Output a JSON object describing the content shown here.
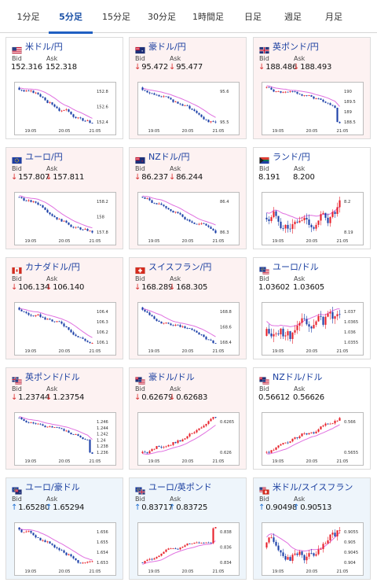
{
  "tabs": [
    {
      "label": "1分足",
      "active": false
    },
    {
      "label": "5分足",
      "active": true
    },
    {
      "label": "15分足",
      "active": false
    },
    {
      "label": "30分足",
      "active": false
    },
    {
      "label": "1時間足",
      "active": false
    },
    {
      "label": "日足",
      "active": false
    },
    {
      "label": "週足",
      "active": false
    },
    {
      "label": "月足",
      "active": false
    }
  ],
  "labels": {
    "bid": "Bid",
    "ask": "Ask"
  },
  "colors": {
    "up_candle": "#e8202a",
    "down_candle": "#1b3fa8",
    "ma_line": "#e070e0",
    "accent": "#1f5fc2",
    "down_bg": "#fdf2f2",
    "up_bg": "#eef5fb"
  },
  "x_ticks": [
    "19:05",
    "20:05",
    "21:05"
  ],
  "cards": [
    {
      "pair": "米ドル/円",
      "flag": "us-flag",
      "direction": "none",
      "bid": "152.316",
      "ask": "152.318",
      "y_ticks": [
        "152.8",
        "152.6",
        "152.4"
      ],
      "chart_data": {
        "type": "candlestick",
        "trend": "down",
        "y_ticks": [
          152.8,
          152.6,
          152.4
        ],
        "x_ticks": [
          "19:05",
          "20:05",
          "21:05"
        ]
      }
    },
    {
      "pair": "豪ドル/円",
      "flag": "au-flag",
      "direction": "down",
      "bid": "95.472",
      "ask": "95.477",
      "y_ticks": [
        "95.6",
        "95.5"
      ],
      "chart_data": {
        "type": "candlestick",
        "trend": "down",
        "y_ticks": [
          95.6,
          95.5
        ],
        "x_ticks": [
          "19:05",
          "20:05",
          "21:05"
        ]
      }
    },
    {
      "pair": "英ポンド/円",
      "flag": "gb-flag",
      "direction": "down",
      "bid": "188.486",
      "ask": "188.493",
      "y_ticks": [
        "190",
        "189.5",
        "189",
        "188.5"
      ],
      "chart_data": {
        "type": "candlestick",
        "trend": "down-drop",
        "y_ticks": [
          190,
          189.5,
          189,
          188.5
        ],
        "x_ticks": [
          "19:05",
          "20:05",
          "21:05"
        ]
      }
    },
    {
      "pair": "ユーロ/円",
      "flag": "eu-flag",
      "direction": "down",
      "bid": "157.807",
      "ask": "157.811",
      "y_ticks": [
        "158.2",
        "158",
        "157.8"
      ],
      "chart_data": {
        "type": "candlestick",
        "trend": "down",
        "y_ticks": [
          158.2,
          158,
          157.8
        ],
        "x_ticks": [
          "19:05",
          "20:05",
          "21:05"
        ]
      }
    },
    {
      "pair": "NZドル/円",
      "flag": "nz-flag",
      "direction": "down",
      "bid": "86.237",
      "ask": "86.244",
      "y_ticks": [
        "86.4",
        "86.3"
      ],
      "chart_data": {
        "type": "candlestick",
        "trend": "down",
        "y_ticks": [
          86.4,
          86.3
        ],
        "x_ticks": [
          "19:05",
          "20:05",
          "21:05"
        ]
      }
    },
    {
      "pair": "ランド/円",
      "flag": "za-flag",
      "direction": "none",
      "bid": "8.191",
      "ask": "8.200",
      "y_ticks": [
        "8.2",
        "8.19"
      ],
      "chart_data": {
        "type": "candlestick",
        "trend": "flat",
        "y_ticks": [
          8.2,
          8.19
        ],
        "x_ticks": [
          "19:05",
          "20:05",
          "21:05"
        ]
      }
    },
    {
      "pair": "カナダドル/円",
      "flag": "ca-flag",
      "direction": "down",
      "bid": "106.134",
      "ask": "106.140",
      "y_ticks": [
        "106.4",
        "106.3",
        "106.2",
        "106.1"
      ],
      "chart_data": {
        "type": "candlestick",
        "trend": "down",
        "y_ticks": [
          106.4,
          106.3,
          106.2,
          106.1
        ],
        "x_ticks": [
          "19:05",
          "20:05",
          "21:05"
        ]
      }
    },
    {
      "pair": "スイスフラン/円",
      "flag": "ch-flag",
      "direction": "down",
      "bid": "168.289",
      "ask": "168.305",
      "y_ticks": [
        "168.8",
        "168.6",
        "168.4"
      ],
      "chart_data": {
        "type": "candlestick",
        "trend": "down",
        "y_ticks": [
          168.8,
          168.6,
          168.4
        ],
        "x_ticks": [
          "19:05",
          "20:05",
          "21:05"
        ]
      }
    },
    {
      "pair": "ユーロ/ドル",
      "flag": "eu-us-flag",
      "direction": "none",
      "bid": "1.03602",
      "ask": "1.03605",
      "y_ticks": [
        "1.037",
        "1.0365",
        "1.036",
        "1.0355"
      ],
      "chart_data": {
        "type": "candlestick",
        "trend": "flat",
        "y_ticks": [
          1.037,
          1.0365,
          1.036,
          1.0355
        ],
        "x_ticks": [
          "19:05",
          "20:05",
          "21:05"
        ]
      }
    },
    {
      "pair": "英ポンド/ドル",
      "flag": "gb-us-flag",
      "direction": "down",
      "bid": "1.23744",
      "ask": "1.23754",
      "y_ticks": [
        "1.246",
        "1.244",
        "1.242",
        "1.24",
        "1.238",
        "1.236"
      ],
      "chart_data": {
        "type": "candlestick",
        "trend": "down-drop",
        "y_ticks": [
          1.246,
          1.244,
          1.242,
          1.24,
          1.238,
          1.236
        ],
        "x_ticks": [
          "19:05",
          "20:05",
          "21:05"
        ]
      }
    },
    {
      "pair": "豪ドル/ドル",
      "flag": "au-us-flag",
      "direction": "down",
      "bid": "0.62679",
      "ask": "0.62683",
      "y_ticks": [
        "0.6265",
        "0.626"
      ],
      "chart_data": {
        "type": "candlestick",
        "trend": "up",
        "y_ticks": [
          0.6265,
          0.626
        ],
        "x_ticks": [
          "19:05",
          "20:05",
          "21:05"
        ]
      }
    },
    {
      "pair": "NZドル/ドル",
      "flag": "nz-us-flag",
      "direction": "none",
      "bid": "0.56612",
      "ask": "0.56626",
      "y_ticks": [
        "0.566",
        "0.5655"
      ],
      "chart_data": {
        "type": "candlestick",
        "trend": "up",
        "y_ticks": [
          0.566,
          0.5655
        ],
        "x_ticks": [
          "19:05",
          "20:05",
          "21:05"
        ]
      }
    },
    {
      "pair": "ユーロ/豪ドル",
      "flag": "eu-au-flag",
      "direction": "up",
      "bid": "1.65280",
      "ask": "1.65294",
      "y_ticks": [
        "1.656",
        "1.655",
        "1.654",
        "1.653"
      ],
      "chart_data": {
        "type": "candlestick",
        "trend": "down",
        "y_ticks": [
          1.656,
          1.655,
          1.654,
          1.653
        ],
        "x_ticks": [
          "19:05",
          "20:05",
          "21:05"
        ]
      }
    },
    {
      "pair": "ユーロ/英ポンド",
      "flag": "eu-gb-flag",
      "direction": "up",
      "bid": "0.83717",
      "ask": "0.83725",
      "y_ticks": [
        "0.838",
        "0.836",
        "0.834"
      ],
      "chart_data": {
        "type": "candlestick",
        "trend": "up-spike",
        "y_ticks": [
          0.838,
          0.836,
          0.834
        ],
        "x_ticks": [
          "19:05",
          "20:05",
          "21:05"
        ]
      }
    },
    {
      "pair": "米ドル/スイスフラン",
      "flag": "us-ch-flag",
      "direction": "up",
      "bid": "0.90498",
      "ask": "0.90513",
      "y_ticks": [
        "0.9055",
        "0.905",
        "0.9045",
        "0.904"
      ],
      "chart_data": {
        "type": "candlestick",
        "trend": "flat",
        "y_ticks": [
          0.9055,
          0.905,
          0.9045,
          0.904
        ],
        "x_ticks": [
          "19:05",
          "20:05",
          "21:05"
        ]
      }
    }
  ]
}
